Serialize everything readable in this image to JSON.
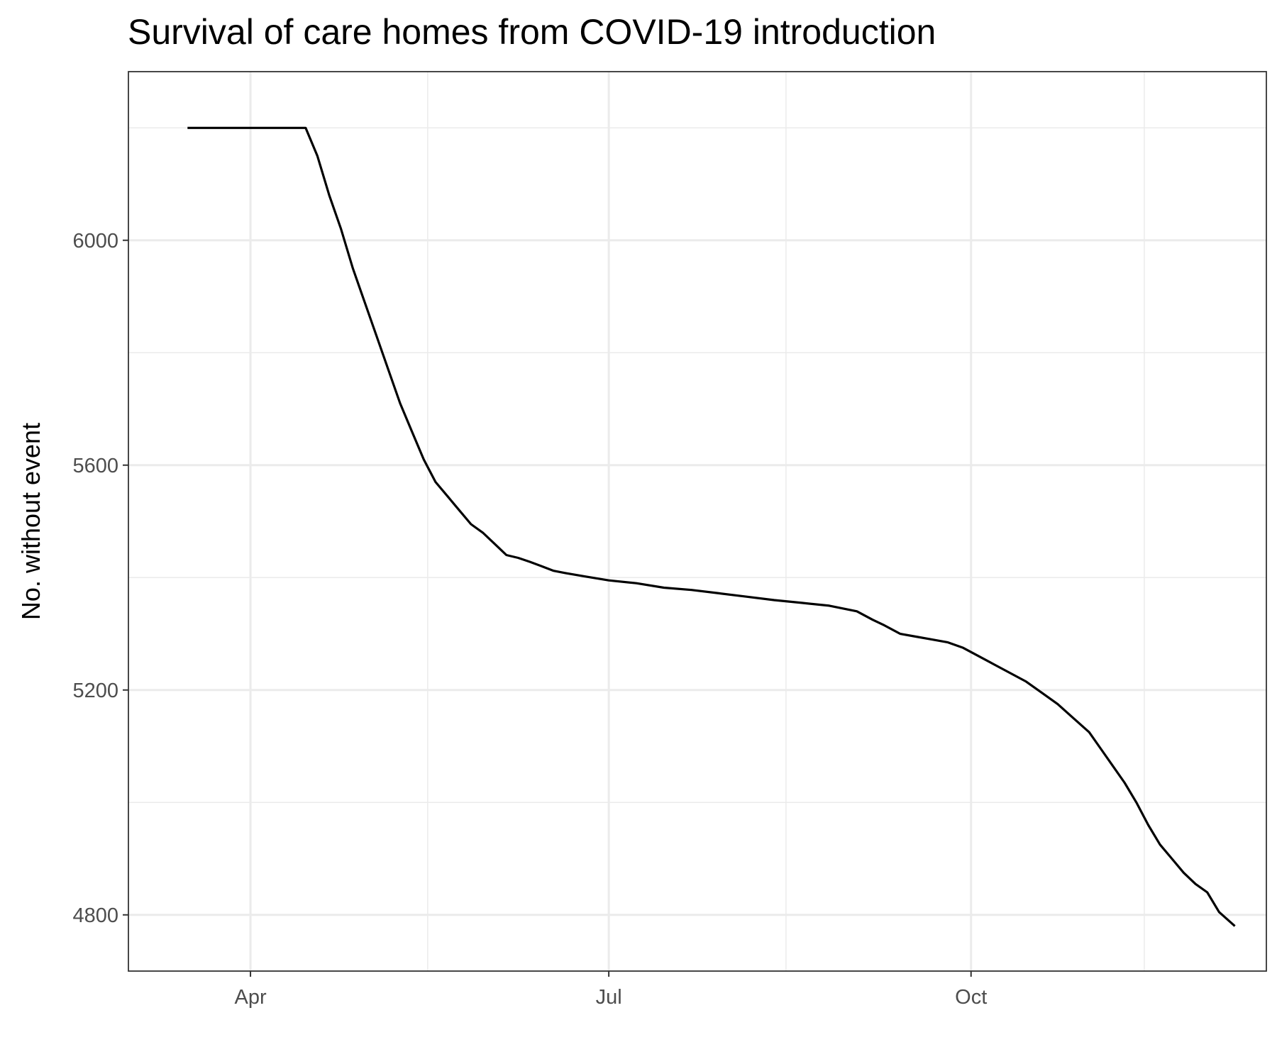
{
  "chart_data": {
    "type": "line",
    "title": "Survival of care homes from COVID-19 introduction",
    "xlabel": "",
    "ylabel": "No. without event",
    "x_ticks": [
      "Apr",
      "Jul",
      "Oct"
    ],
    "y_ticks": [
      "4800",
      "5200",
      "5600",
      "6000"
    ],
    "xlim": [
      "2020-03-01",
      "2020-12-15"
    ],
    "ylim": [
      4700,
      6300
    ],
    "grid": true,
    "legend": "none",
    "line_color": "#000000",
    "series": [
      {
        "x": [
          "2020-03-16",
          "2020-03-25",
          "2020-04-05",
          "2020-04-15",
          "2020-04-18",
          "2020-04-21",
          "2020-04-24",
          "2020-04-27",
          "2020-04-30",
          "2020-05-03",
          "2020-05-06",
          "2020-05-09",
          "2020-05-12",
          "2020-05-15",
          "2020-05-18",
          "2020-05-21",
          "2020-05-24",
          "2020-05-27",
          "2020-05-30",
          "2020-06-02",
          "2020-06-05",
          "2020-06-08",
          "2020-06-11",
          "2020-06-14",
          "2020-06-17",
          "2020-06-20",
          "2020-06-25",
          "2020-07-01",
          "2020-07-08",
          "2020-07-15",
          "2020-07-22",
          "2020-07-29",
          "2020-08-05",
          "2020-08-12",
          "2020-08-19",
          "2020-08-26",
          "2020-09-02",
          "2020-09-06",
          "2020-09-09",
          "2020-09-13",
          "2020-09-17",
          "2020-09-21",
          "2020-09-25",
          "2020-09-29",
          "2020-10-03",
          "2020-10-07",
          "2020-10-11",
          "2020-10-15",
          "2020-10-19",
          "2020-10-23",
          "2020-10-27",
          "2020-10-31",
          "2020-11-03",
          "2020-11-06",
          "2020-11-09",
          "2020-11-12",
          "2020-11-15",
          "2020-11-18",
          "2020-11-21",
          "2020-11-24",
          "2020-11-27",
          "2020-11-30",
          "2020-12-03",
          "2020-12-07"
        ],
        "y": [
          6200,
          6200,
          6200,
          6200,
          6150,
          6080,
          6020,
          5950,
          5890,
          5830,
          5770,
          5710,
          5660,
          5610,
          5570,
          5545,
          5520,
          5495,
          5480,
          5460,
          5440,
          5435,
          5428,
          5420,
          5412,
          5408,
          5402,
          5395,
          5390,
          5382,
          5378,
          5372,
          5366,
          5360,
          5355,
          5350,
          5340,
          5325,
          5315,
          5300,
          5295,
          5290,
          5285,
          5275,
          5260,
          5245,
          5230,
          5215,
          5195,
          5175,
          5150,
          5125,
          5095,
          5065,
          5035,
          5000,
          4960,
          4925,
          4900,
          4875,
          4855,
          4840,
          4805,
          4780
        ]
      }
    ]
  }
}
